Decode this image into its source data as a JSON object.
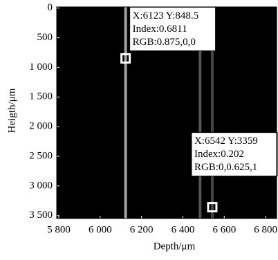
{
  "chart_data": {
    "type": "image",
    "x_label": "Depth/μm",
    "y_label": "Heigth/μm",
    "xlim": [
      5790,
      6853
    ],
    "ylim": [
      -20,
      3550
    ],
    "y_reversed": true,
    "background": "#000000",
    "xticks": [
      {
        "value": 5800,
        "label": "5 800"
      },
      {
        "value": 6000,
        "label": "6 000"
      },
      {
        "value": 6200,
        "label": "6 200"
      },
      {
        "value": 6400,
        "label": "6 400"
      },
      {
        "value": 6600,
        "label": "6 600"
      },
      {
        "value": 6800,
        "label": "6 800"
      }
    ],
    "yticks": [
      0,
      500,
      {
        "value": 1000,
        "label": "1 000"
      },
      {
        "value": 1500,
        "label": "1 500"
      },
      {
        "value": 2000,
        "label": "2 000"
      },
      {
        "value": 2500,
        "label": "2 500"
      },
      {
        "value": 3000,
        "label": "3 000"
      },
      {
        "value": 3500,
        "label": "3 500"
      }
    ],
    "lines": {
      "x": [
        6123,
        6483,
        6542
      ],
      "values": [
        0.6811,
        0.3,
        0.202
      ]
    },
    "data_tips": [
      {
        "x": 6123,
        "y": 848.5,
        "label_lines": [
          "X:6123 Y:848.5",
          "Index:0.6811",
          "RGB:0.875,0,0"
        ]
      },
      {
        "x": 6542,
        "y": 3359,
        "label_lines": [
          "X:6542 Y:3359",
          "Index:0.202",
          "RGB:0,0.625,1"
        ]
      }
    ]
  }
}
